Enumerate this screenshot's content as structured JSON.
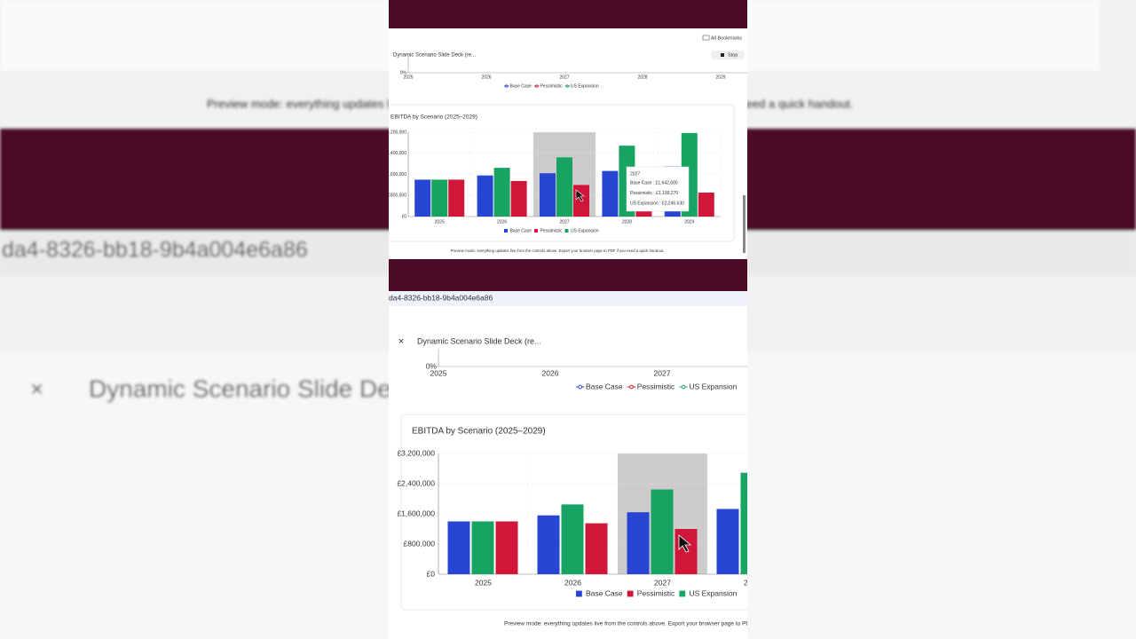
{
  "browser": {
    "bookmarks": "All Bookmarks",
    "tab_title": "Dynamic Scenario Slide Deck (re...",
    "stop": "Stop",
    "url_fragment": "da4-8326-bb18-9b4a004e6a86"
  },
  "footer": "Preview mode: everything updates live from the controls above. Export your browser page to PDF if you need a quick handout.",
  "chart_data": [
    {
      "type": "bar",
      "title": "EBITDA by Scenario (2025–2029)",
      "categories": [
        "2025",
        "2026",
        "2027",
        "2028",
        "2029"
      ],
      "series": [
        {
          "name": "Base Case",
          "color": "#2746d4",
          "values": [
            1400000,
            1560000,
            1642600,
            1730000,
            1900000
          ]
        },
        {
          "name": "Pessimistic",
          "color": "#d0173a",
          "values": [
            1400000,
            1350000,
            1199270,
            1050000,
            910000
          ]
        },
        {
          "name": "US Expansion",
          "color": "#17a463",
          "values": [
            1400000,
            1850000,
            2246630,
            2690000,
            3170000
          ]
        }
      ],
      "ylim": [
        0,
        3200000
      ],
      "yticks": [
        {
          "value": 0,
          "label": "£0"
        },
        {
          "value": 800000,
          "label": "£800,000"
        },
        {
          "value": 1600000,
          "label": "£1,600,000"
        },
        {
          "value": 2400000,
          "label": "£2,400,000"
        },
        {
          "value": 3200000,
          "label": "£3,200,000"
        }
      ],
      "grid": true,
      "legend": "bottom",
      "tooltip": {
        "title": "2027",
        "items": [
          "Base Case : £1,642,600",
          "Pessimistic : £1,199,270",
          "US Expansion : £2,246,630"
        ]
      }
    },
    {
      "type": "line",
      "categories": [
        "2025",
        "2026",
        "2027",
        "2028",
        "2029"
      ],
      "series": [
        {
          "name": "Base Case",
          "color": "#2746d4"
        },
        {
          "name": "Pessimistic",
          "color": "#d0173a"
        },
        {
          "name": "US Expansion",
          "color": "#17a463"
        }
      ],
      "yticks": [
        {
          "value": 0,
          "label": "0%"
        }
      ],
      "legend": "bottom"
    }
  ]
}
